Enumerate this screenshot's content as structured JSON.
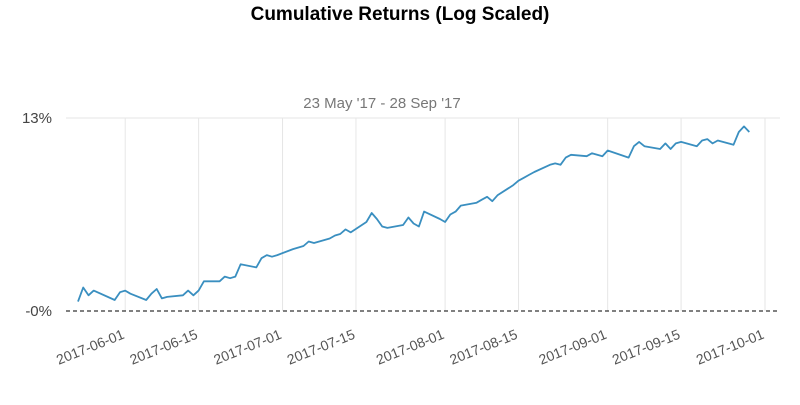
{
  "chart_data": {
    "type": "line",
    "title": "Cumulative Returns (Log Scaled)",
    "subtitle": "23 May '17 - 28 Sep '17",
    "xlabel": "",
    "ylabel": "",
    "y_scale": "log",
    "y_ticks": [
      {
        "value": 0,
        "label": "-0%"
      },
      {
        "value": 13,
        "label": "13%"
      }
    ],
    "x_ticks": [
      "2017-06-01",
      "2017-06-15",
      "2017-07-01",
      "2017-07-15",
      "2017-08-01",
      "2017-08-15",
      "2017-09-01",
      "2017-09-15",
      "2017-10-01"
    ],
    "xlim": [
      "2017-05-23",
      "2017-10-01"
    ],
    "ylim": [
      0,
      13
    ],
    "grid": "vertical",
    "line_color": "#3a8fc0",
    "zero_line_color": "#000000",
    "series": [
      {
        "x": [
          "2017-05-23",
          "2017-05-24",
          "2017-05-25",
          "2017-05-26",
          "2017-05-30",
          "2017-05-31",
          "2017-06-01",
          "2017-06-02",
          "2017-06-05",
          "2017-06-06",
          "2017-06-07",
          "2017-06-08",
          "2017-06-09",
          "2017-06-12",
          "2017-06-13",
          "2017-06-14",
          "2017-06-15",
          "2017-06-16",
          "2017-06-19",
          "2017-06-20",
          "2017-06-21",
          "2017-06-22",
          "2017-06-23",
          "2017-06-26",
          "2017-06-27",
          "2017-06-28",
          "2017-06-29",
          "2017-06-30",
          "2017-07-03",
          "2017-07-05",
          "2017-07-06",
          "2017-07-07",
          "2017-07-10",
          "2017-07-11",
          "2017-07-12",
          "2017-07-13",
          "2017-07-14",
          "2017-07-17",
          "2017-07-18",
          "2017-07-19",
          "2017-07-20",
          "2017-07-21",
          "2017-07-24",
          "2017-07-25",
          "2017-07-26",
          "2017-07-27",
          "2017-07-28",
          "2017-07-31",
          "2017-08-01",
          "2017-08-02",
          "2017-08-03",
          "2017-08-04",
          "2017-08-07",
          "2017-08-08",
          "2017-08-09",
          "2017-08-10",
          "2017-08-11",
          "2017-08-14",
          "2017-08-15",
          "2017-08-16",
          "2017-08-17",
          "2017-08-18",
          "2017-08-21",
          "2017-08-22",
          "2017-08-23",
          "2017-08-24",
          "2017-08-25",
          "2017-08-28",
          "2017-08-29",
          "2017-08-30",
          "2017-08-31",
          "2017-09-01",
          "2017-09-05",
          "2017-09-06",
          "2017-09-07",
          "2017-09-08",
          "2017-09-11",
          "2017-09-12",
          "2017-09-13",
          "2017-09-14",
          "2017-09-15",
          "2017-09-18",
          "2017-09-19",
          "2017-09-20",
          "2017-09-21",
          "2017-09-22",
          "2017-09-25",
          "2017-09-26",
          "2017-09-27",
          "2017-09-28"
        ],
        "y": [
          0.6,
          1.5,
          1.0,
          1.3,
          0.7,
          1.2,
          1.3,
          1.1,
          0.7,
          1.1,
          1.4,
          0.8,
          0.9,
          1.0,
          1.3,
          1.0,
          1.3,
          1.9,
          1.9,
          2.2,
          2.1,
          2.2,
          3.0,
          2.8,
          3.4,
          3.6,
          3.5,
          3.6,
          4.0,
          4.2,
          4.5,
          4.4,
          4.7,
          4.9,
          5.0,
          5.3,
          5.1,
          5.8,
          6.4,
          6.0,
          5.5,
          5.4,
          5.6,
          6.1,
          5.7,
          5.5,
          6.5,
          6.0,
          5.8,
          6.3,
          6.5,
          6.9,
          7.1,
          7.3,
          7.5,
          7.2,
          7.6,
          8.3,
          8.6,
          8.8,
          9.0,
          9.2,
          9.7,
          9.8,
          9.7,
          10.2,
          10.4,
          10.3,
          10.5,
          10.4,
          10.3,
          10.7,
          10.2,
          11.0,
          11.3,
          11.0,
          10.8,
          11.2,
          10.8,
          11.2,
          11.3,
          11.0,
          11.4,
          11.5,
          11.2,
          11.4,
          11.1,
          12.0,
          12.4,
          12.0
        ]
      }
    ]
  }
}
